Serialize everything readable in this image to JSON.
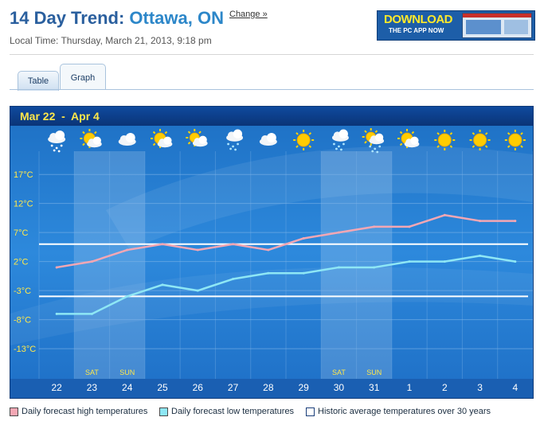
{
  "header": {
    "title_prefix": "14 Day Trend:",
    "city": "Ottawa, ON",
    "change_link": "Change »",
    "local_time": "Local Time: Thursday, March 21, 2013, 9:18 pm"
  },
  "ad": {
    "headline": "DOWNLOAD",
    "subline": "THE PC APP NOW"
  },
  "tabs": [
    {
      "label": "Table",
      "active": false
    },
    {
      "label": "Graph",
      "active": true
    }
  ],
  "chart_data": {
    "type": "line",
    "title": "Mar 22  -  Apr 4",
    "categories": [
      "22",
      "23",
      "24",
      "25",
      "26",
      "27",
      "28",
      "29",
      "30",
      "31",
      "1",
      "2",
      "3",
      "4"
    ],
    "weekday_labels": [
      "",
      "SAT",
      "SUN",
      "",
      "",
      "",
      "",
      "",
      "SAT",
      "SUN",
      "",
      "",
      "",
      ""
    ],
    "icons": [
      "snow-cloud",
      "sun-cloud",
      "cloud",
      "sun-cloud",
      "sun-cloud-sun",
      "cloud-snow",
      "cloud",
      "sun",
      "cloud-snow",
      "sun-cloud-snow",
      "sun-cloud",
      "sun",
      "sun",
      "sun"
    ],
    "y_ticks": [
      "17°C",
      "12°C",
      "7°C",
      "2°C",
      "-3°C",
      "-8°C",
      "-13°C"
    ],
    "y_tick_values": [
      17,
      12,
      7,
      2,
      -3,
      -8,
      -13
    ],
    "ylim": [
      -16,
      21
    ],
    "series": [
      {
        "name": "Daily forecast high temperatures",
        "color": "#f4a7b4",
        "values": [
          1,
          2,
          4,
          5,
          4,
          5,
          4,
          6,
          7,
          8,
          8,
          10,
          9,
          9
        ]
      },
      {
        "name": "Daily forecast low temperatures",
        "color": "#8ee7f5",
        "values": [
          -7,
          -7,
          -4,
          -2,
          -3,
          -1,
          0,
          0,
          1,
          1,
          2,
          2,
          3,
          2
        ]
      },
      {
        "name": "Historic average temperatures over 30 years",
        "color": "#ffffff",
        "lines": [
          5,
          -4
        ]
      }
    ],
    "grid": true
  }
}
